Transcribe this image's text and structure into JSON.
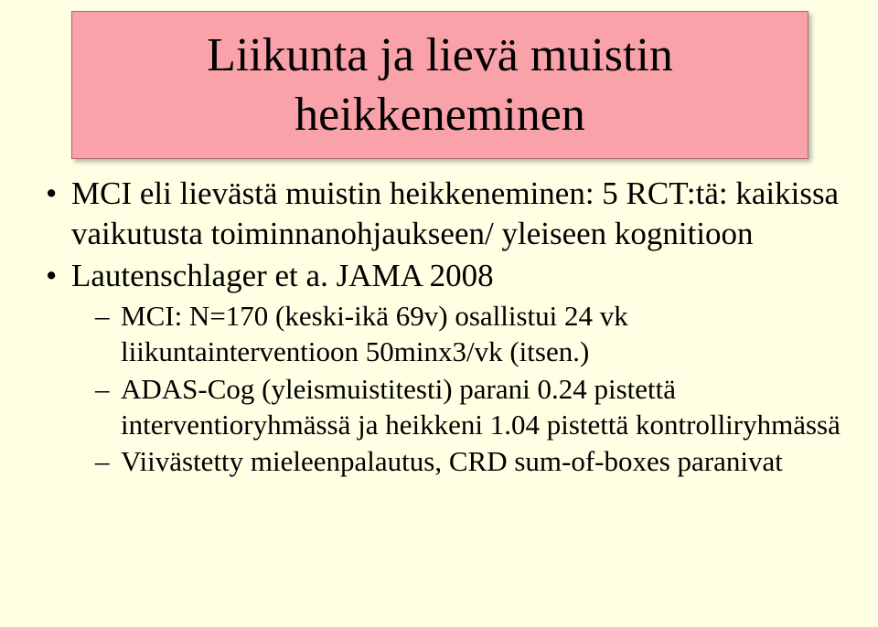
{
  "title": "Liikunta ja lievä muistin heikkeneminen",
  "bullets": [
    {
      "text": "MCI eli lievästä muistin heikkeneminen: 5 RCT:tä: kaikissa vaikutusta toiminnanohjaukseen/ yleiseen kognitioon"
    },
    {
      "text": "Lautenschlager et a. JAMA 2008",
      "sub": [
        "MCI: N=170 (keski-ikä 69v) osallistui 24 vk liikuntainterventioon 50minx3/vk (itsen.)",
        "ADAS-Cog (yleismuistitesti) parani 0.24 pistettä interventioryhmässä ja heikkeni 1.04 pistettä kontrolliryhmässä",
        "Viivästetty mieleenpalautus, CRD sum-of-boxes paranivat"
      ]
    }
  ],
  "colors": {
    "slide_bg": "#feffe3",
    "title_bg": "#f9a2aa",
    "title_border": "#a86b71",
    "text": "#000000"
  },
  "typography": {
    "family": "Times New Roman",
    "title_fontsize_pt": 40,
    "body_fontsize_pt": 26,
    "sub_fontsize_pt": 23
  }
}
